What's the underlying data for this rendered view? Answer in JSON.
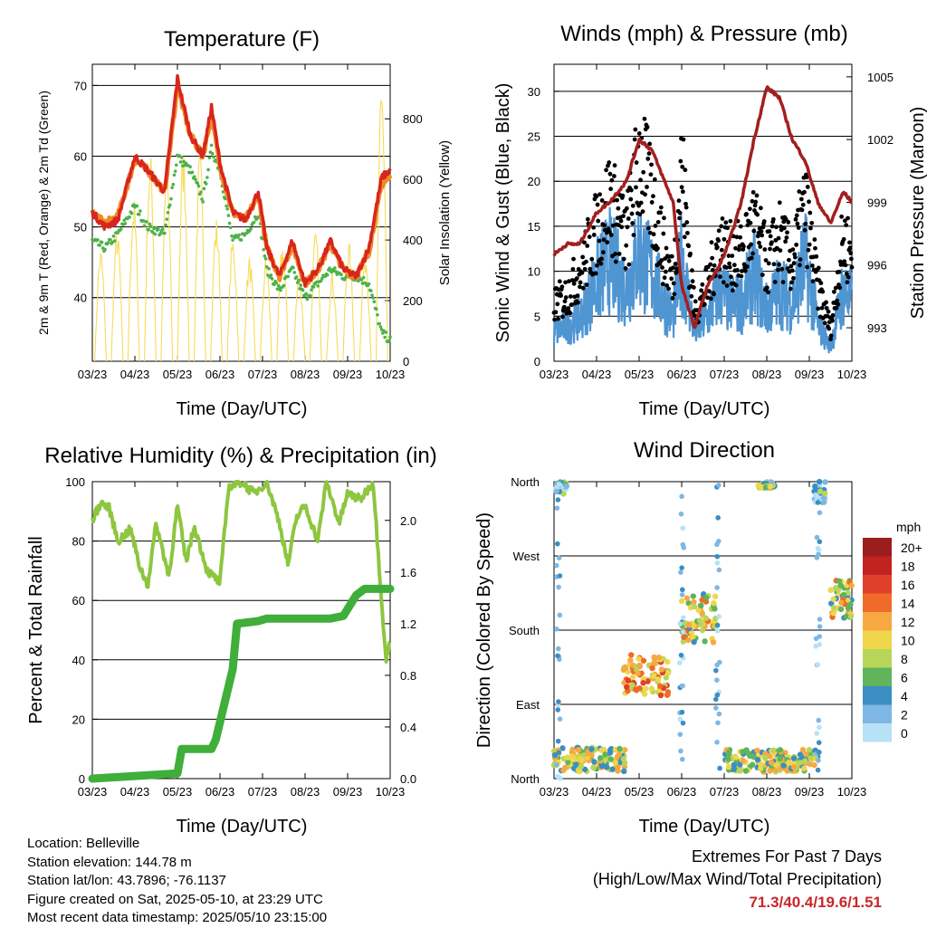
{
  "x_ticks": [
    "03/23",
    "04/23",
    "05/23",
    "06/23",
    "07/23",
    "08/23",
    "09/23",
    "10/23"
  ],
  "chart_data": [
    {
      "type": "line",
      "title": "Temperature (F)",
      "xlabel": "Time (Day/UTC)",
      "ylabel": "2m & 9m T (Red, Orange) & 2m Td (Green)",
      "ylabel_right": "Solar Insolation (Yellow)",
      "ylim": [
        31,
        73
      ],
      "y_ticks": [
        40,
        50,
        60,
        70
      ],
      "ylim_right": [
        0,
        980
      ],
      "y_ticks_right": [
        0,
        200,
        400,
        600,
        800
      ],
      "x_ticks": [
        "03/23",
        "04/23",
        "05/23",
        "06/23",
        "07/23",
        "08/23",
        "09/23",
        "10/23"
      ],
      "x": [
        0,
        0.3,
        0.6,
        1,
        1.3,
        1.7,
        2,
        2.3,
        2.6,
        2.8,
        3,
        3.3,
        3.6,
        3.9,
        4.1,
        4.4,
        4.7,
        5,
        5.3,
        5.6,
        5.9,
        6.2,
        6.5,
        6.8,
        7
      ],
      "series": [
        {
          "name": "2m T",
          "color": "#d7261e",
          "values": [
            52,
            50,
            51,
            60,
            58,
            55,
            71,
            63,
            60,
            67,
            59,
            52,
            51,
            55,
            47,
            43,
            48,
            42,
            44,
            48,
            44,
            43,
            47,
            57,
            58
          ]
        },
        {
          "name": "9m T",
          "color": "#f08a24",
          "values": [
            52,
            50.5,
            51.5,
            59.5,
            58,
            55,
            70,
            63,
            60,
            66,
            58.5,
            52,
            51,
            54.5,
            47,
            43,
            47.5,
            42,
            44,
            47.5,
            44,
            43,
            46.5,
            56,
            57
          ]
        },
        {
          "name": "2m Td",
          "color": "#4db24a",
          "values": [
            48,
            47,
            49,
            53,
            50,
            49,
            60,
            58,
            54,
            61,
            58,
            48,
            49,
            52,
            44,
            41,
            44,
            40,
            42,
            44,
            43,
            43,
            42,
            35,
            34
          ]
        },
        {
          "name": "Solar Insolation",
          "color": "#f5dc5a",
          "axis": "right",
          "peaks": [
            380,
            450,
            550,
            700,
            660,
            720,
            700,
            480,
            420,
            350,
            350,
            400,
            300,
            430,
            300,
            400,
            380,
            930
          ]
        }
      ]
    },
    {
      "type": "scatter",
      "title": "Winds (mph) & Pressure (mb)",
      "xlabel": "Time (Day/UTC)",
      "ylabel": "Sonic Wind & Gust (Blue, Black)",
      "ylabel_right": "Station Pressure (Maroon)",
      "ylim": [
        0,
        33
      ],
      "y_ticks": [
        0,
        5,
        10,
        15,
        20,
        25,
        30
      ],
      "ylim_right": [
        991.4,
        1005.6
      ],
      "y_ticks_right": [
        993,
        996,
        999,
        1002,
        1005
      ],
      "x_ticks": [
        "03/23",
        "04/23",
        "05/23",
        "06/23",
        "07/23",
        "08/23",
        "09/23",
        "10/23"
      ],
      "x": [
        0,
        0.3,
        0.6,
        1,
        1.3,
        1.7,
        2,
        2.3,
        2.6,
        2.8,
        3,
        3.3,
        3.6,
        3.9,
        4.1,
        4.4,
        4.7,
        5,
        5.3,
        5.6,
        5.9,
        6.2,
        6.5,
        6.8,
        7
      ],
      "series": [
        {
          "name": "Wind",
          "color": "#4f95d2",
          "values": [
            4,
            5,
            6,
            11,
            14,
            10,
            15,
            12,
            8,
            6,
            14,
            4,
            6,
            10,
            8,
            8,
            12,
            7,
            10,
            8,
            14,
            5,
            2,
            10,
            8
          ]
        },
        {
          "name": "Gust",
          "color": "#000000",
          "values": [
            7,
            8,
            11,
            16,
            20,
            15,
            25,
            20,
            13,
            10,
            24,
            6,
            9,
            15,
            13,
            13,
            17,
            12,
            15,
            12,
            19,
            9,
            4,
            15,
            13
          ]
        },
        {
          "name": "Station Pressure",
          "color": "#a31f1f",
          "axis": "right",
          "values": [
            996.5,
            997,
            997,
            998.5,
            999,
            1000,
            1002,
            1001.5,
            1000,
            999,
            995,
            993,
            995,
            996,
            997,
            999,
            1002,
            1004.5,
            1004,
            1002,
            1001,
            999,
            998,
            999.5,
            999
          ]
        }
      ]
    },
    {
      "type": "line",
      "title": "Relative Humidity (%) & Precipitation (in)",
      "xlabel": "Time (Day/UTC)",
      "ylabel": "Percent & Total Rainfall",
      "ylim": [
        0,
        100
      ],
      "y_ticks": [
        0,
        20,
        40,
        60,
        80,
        100
      ],
      "ylim_right": [
        0,
        2.3
      ],
      "y_ticks_right": [
        "0.0",
        "0.4",
        "0.8",
        "1.2",
        "1.6",
        "2.0"
      ],
      "x_ticks": [
        "03/23",
        "04/23",
        "05/23",
        "06/23",
        "07/23",
        "08/23",
        "09/23",
        "10/23"
      ],
      "series": [
        {
          "name": "Relative Humidity",
          "color": "#8dc63f",
          "x": [
            0,
            0.2,
            0.4,
            0.6,
            0.9,
            1.1,
            1.3,
            1.5,
            1.8,
            2,
            2.2,
            2.4,
            2.7,
            3,
            3.2,
            3.5,
            3.8,
            4.1,
            4.4,
            4.6,
            4.8,
            5,
            5.3,
            5.5,
            5.8,
            6,
            6.3,
            6.6,
            6.8,
            6.9,
            7
          ],
          "values": [
            87,
            93,
            91,
            80,
            84,
            72,
            65,
            86,
            68,
            92,
            73,
            85,
            70,
            66,
            98,
            100,
            96,
            100,
            86,
            72,
            88,
            92,
            80,
            100,
            86,
            96,
            94,
            100,
            60,
            40,
            46
          ]
        },
        {
          "name": "Total Precipitation",
          "color": "#3fae3a",
          "axis": "right",
          "x": [
            0,
            1,
            2,
            2.1,
            2.8,
            2.9,
            3.3,
            3.4,
            3.9,
            4.1,
            4.5,
            5,
            5.6,
            5.9,
            6.2,
            6.4,
            6.6,
            7
          ],
          "values": [
            0,
            0.02,
            0.04,
            0.23,
            0.23,
            0.3,
            0.85,
            1.2,
            1.22,
            1.24,
            1.24,
            1.24,
            1.24,
            1.26,
            1.42,
            1.47,
            1.47,
            1.47
          ]
        }
      ]
    },
    {
      "type": "scatter",
      "title": "Wind Direction",
      "xlabel": "Time (Day/UTC)",
      "ylabel": "Direction (Colored By Speed)",
      "y_ticks": [
        "North",
        "East",
        "South",
        "West",
        "North"
      ],
      "x_ticks": [
        "03/23",
        "04/23",
        "05/23",
        "06/23",
        "07/23",
        "08/23",
        "09/23",
        "10/23"
      ],
      "colorbar_title": "mph",
      "colorbar_labels": [
        "20+",
        "18",
        "16",
        "14",
        "12",
        "10",
        "8",
        "6",
        "4",
        "2",
        "0"
      ],
      "colorbar_colors": [
        "#9c1d1d",
        "#c2231f",
        "#e0402a",
        "#f06a2a",
        "#f7a841",
        "#f0d64a",
        "#b9d65a",
        "#5fb45c",
        "#3b8ec2",
        "#7fb7e4",
        "#b7e1f7"
      ],
      "clusters": [
        {
          "x": [
            0,
            1.7
          ],
          "dir": [
            8,
            38
          ],
          "speed": 8
        },
        {
          "x": [
            1.6,
            2.7
          ],
          "dir": [
            100,
            150
          ],
          "speed": 12
        },
        {
          "x": [
            3,
            3.8
          ],
          "dir": [
            165,
            225
          ],
          "speed": 9
        },
        {
          "x": [
            4,
            6.2
          ],
          "dir": [
            8,
            35
          ],
          "speed": 8
        },
        {
          "x": [
            6.5,
            7
          ],
          "dir": [
            195,
            240
          ],
          "speed": 9
        },
        {
          "x": [
            0.05,
            0.3
          ],
          "dir": [
            345,
            360
          ],
          "speed": 3
        },
        {
          "x": [
            4.8,
            5.2
          ],
          "dir": [
            352,
            360
          ],
          "speed": 7
        },
        {
          "x": [
            6.1,
            6.4
          ],
          "dir": [
            335,
            360
          ],
          "speed": 3
        }
      ]
    }
  ],
  "info": {
    "location": "Location: Belleville",
    "elevation": "Station elevation: 144.78 m",
    "latlon": "Station lat/lon: 43.7896; -76.1137",
    "created": "Figure created on Sat, 2025-05-10, at 23:29 UTC",
    "latest": "Most recent data timestamp: 2025/05/10 23:15:00"
  },
  "extremes": {
    "line1": "Extremes For Past 7 Days",
    "line2": "(High/Low/Max Wind/Total Precipitation)",
    "values": "71.3/40.4/19.6/1.51",
    "values_color": "#c8262c"
  }
}
